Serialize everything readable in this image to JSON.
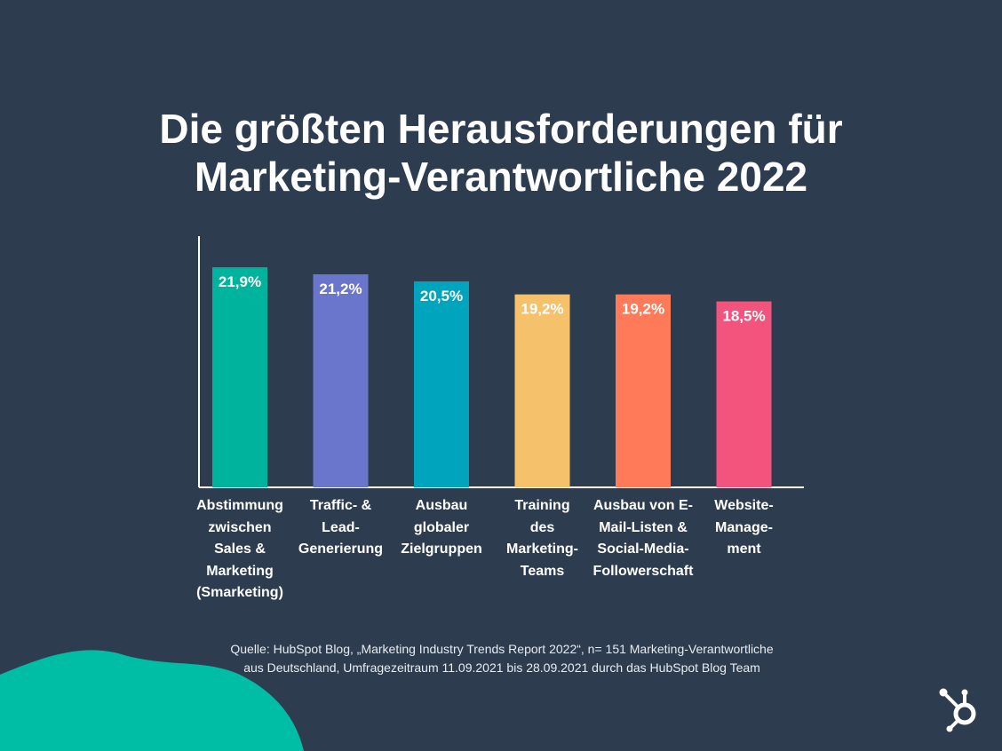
{
  "header": {
    "title_line1": "Die größten Herausforderungen für",
    "title_line2": "Marketing-Verantwortliche 2022"
  },
  "source": {
    "line1": "Quelle: HubSpot Blog, „Marketing Industry Trends Report 2022“, n= 151 Marketing-Verantwortliche",
    "line2": "aus Deutschland, Umfragezeitraum 11.09.2021 bis 28.09.2021 durch das HubSpot Blog Team"
  },
  "brand": {
    "logo_icon": "hubspot-sprocket-icon",
    "accent": "#00bda5",
    "background": "#2e3c4f"
  },
  "chart_data": {
    "type": "bar",
    "title": "Die größten Herausforderungen für Marketing-Verantwortliche 2022",
    "xlabel": "",
    "ylabel": "",
    "ylim": [
      0,
      25
    ],
    "grid": false,
    "categories": [
      "Abstimmung\nzwischen\nSales &\nMarketing\n(Smarketing)",
      "Traffic- &\nLead-\nGenerierung",
      "Ausbau\nglobaler\nZielgruppen",
      "Training\ndes\nMarketing-\nTeams",
      "Ausbau von E-\nMail-Listen &\nSocial-Media-\nFollowerschaft",
      "Website-\nManage-\nment"
    ],
    "values": [
      21.9,
      21.2,
      20.5,
      19.2,
      19.2,
      18.5
    ],
    "value_labels": [
      "21,9%",
      "21,2%",
      "20,5%",
      "19,2%",
      "19,2%",
      "18,5%"
    ],
    "colors": [
      "#00b39c",
      "#6a76cc",
      "#00a4bd",
      "#f5c26b",
      "#ff7a59",
      "#f2547d"
    ]
  }
}
